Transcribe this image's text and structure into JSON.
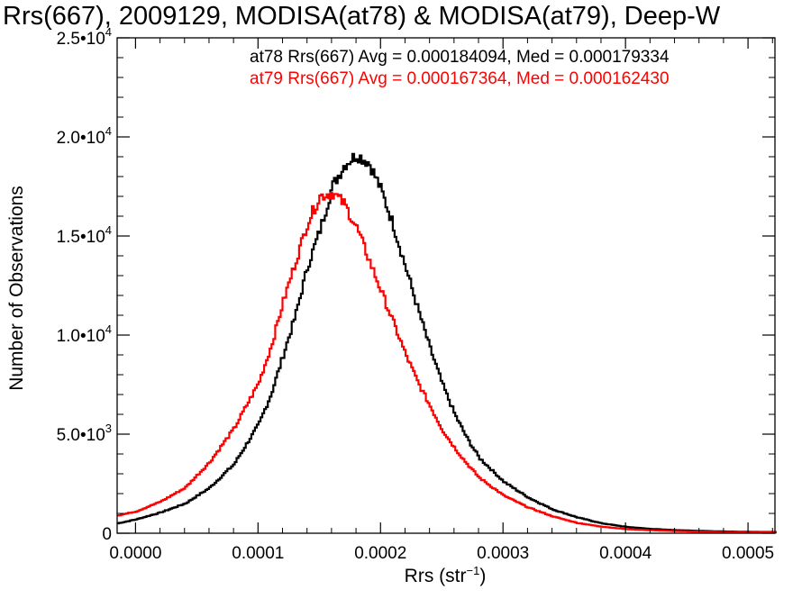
{
  "chart_data": {
    "type": "step-histogram",
    "title": "Rrs(667), 2009129, MODISA(at78) & MODISA(at79), Deep-W",
    "xlabel": "Rrs (str",
    "xlabel_sup": "−1",
    "xlabel_close": ")",
    "ylabel": "Number of Observations",
    "xlim": [
      -1.5e-05,
      0.000522
    ],
    "ylim": [
      0,
      25000
    ],
    "x_ticks": [
      0.0,
      0.0001,
      0.0002,
      0.0003,
      0.0004,
      0.0005
    ],
    "x_tick_labels": [
      "0.0000",
      "0.0001",
      "0.0002",
      "0.0003",
      "0.0004",
      "0.0005"
    ],
    "y_ticks": [
      {
        "value": 0,
        "mantissa": "0",
        "exp": ""
      },
      {
        "value": 5000,
        "mantissa": "5.0•10",
        "exp": "3"
      },
      {
        "value": 10000,
        "mantissa": "1.0•10",
        "exp": "4"
      },
      {
        "value": 15000,
        "mantissa": "1.5•10",
        "exp": "4"
      },
      {
        "value": 20000,
        "mantissa": "2.0•10",
        "exp": "4"
      },
      {
        "value": 25000,
        "mantissa": "2.5•10",
        "exp": "4"
      }
    ],
    "series": [
      {
        "name": "at78",
        "color": "#000000",
        "legend": "at78 Rrs(667) Avg = 0.000184094, Med = 0.000179334",
        "x": [
          -1.5e-05,
          0.0,
          2e-05,
          4e-05,
          6e-05,
          8e-05,
          0.0001,
          0.00011,
          0.00012,
          0.00013,
          0.00014,
          0.00015,
          0.00016,
          0.00017,
          0.00018,
          0.00019,
          0.0002,
          0.00021,
          0.00022,
          0.00023,
          0.00024,
          0.00025,
          0.00026,
          0.00027,
          0.00028,
          0.0003,
          0.00032,
          0.00034,
          0.00036,
          0.00038,
          0.0004,
          0.00042,
          0.00044,
          0.00046,
          0.00048,
          0.0005,
          0.000522
        ],
        "y": [
          500,
          700,
          1050,
          1500,
          2300,
          3500,
          5500,
          7000,
          9000,
          11000,
          13500,
          15300,
          17500,
          18600,
          19100,
          18700,
          17300,
          15500,
          13400,
          11300,
          9300,
          7500,
          6000,
          4800,
          3800,
          2600,
          1800,
          1200,
          800,
          500,
          320,
          220,
          160,
          120,
          90,
          70,
          60
        ]
      },
      {
        "name": "at79",
        "color": "#ff0000",
        "legend": "at79 Rrs(667) Avg = 0.000167364, Med = 0.000162430",
        "x": [
          -1.5e-05,
          0.0,
          2e-05,
          4e-05,
          6e-05,
          8e-05,
          0.0001,
          0.00011,
          0.00012,
          0.00013,
          0.00014,
          0.00015,
          0.00016,
          0.00017,
          0.00018,
          0.00019,
          0.0002,
          0.00021,
          0.00022,
          0.00023,
          0.00024,
          0.00025,
          0.00026,
          0.00027,
          0.00028,
          0.0003,
          0.00032,
          0.00034,
          0.00036,
          0.00038,
          0.0004,
          0.00042,
          0.00044,
          0.00046,
          0.00048,
          0.0005,
          0.000522
        ],
        "y": [
          900,
          1100,
          1600,
          2300,
          3600,
          5300,
          7600,
          9400,
          11700,
          13700,
          15700,
          17000,
          17200,
          16600,
          15400,
          13800,
          12200,
          10600,
          9000,
          7600,
          6400,
          5200,
          4300,
          3500,
          2800,
          1900,
          1300,
          850,
          520,
          330,
          210,
          150,
          110,
          80,
          60,
          45,
          40
        ]
      }
    ]
  }
}
